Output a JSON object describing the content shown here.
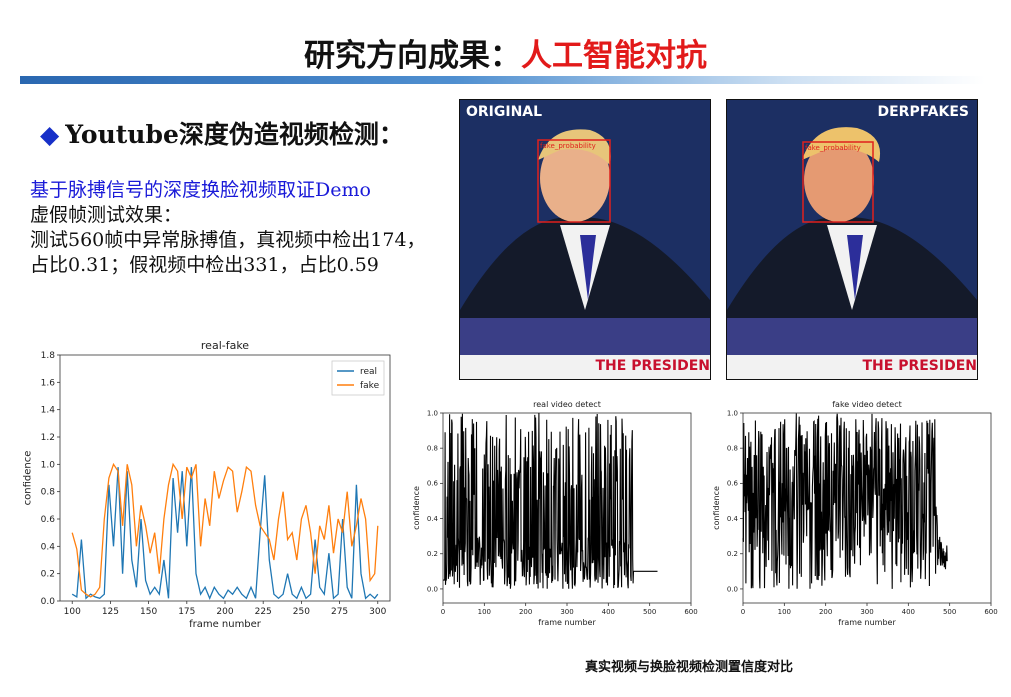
{
  "slide": {
    "title_prefix": "研究方向成果：",
    "title_accent": "人工智能对抗",
    "bullet": "Youtube深度伪造视频检测：",
    "line1": "基于脉搏信号的深度换脸视频取证Demo",
    "line2": "虚假帧测试效果：",
    "line3": "测试560帧中异常脉搏值，真视频中检出174，",
    "line4": "占比0.31；假视频中检出331，占比0.59",
    "caption": "真实视频与换脸视频检测置信度对比"
  },
  "photos": [
    {
      "label": "ORIGINAL",
      "box_label": "fake_probability",
      "strip_text": "THE PRESIDEN"
    },
    {
      "label": "DERPFAKES",
      "box_label": "fake_probability",
      "strip_text": "THE PRESIDEN"
    }
  ],
  "colors": {
    "accent_red": "#e21a1a",
    "bullet_blue": "#1730c8",
    "link_blue": "#1a1ad8",
    "real": "#1f77b4",
    "fake": "#ff7f0e"
  },
  "chart_data": [
    {
      "type": "line",
      "title": "real-fake",
      "xlabel": "frame number",
      "ylabel": "confidence",
      "xlim": [
        92,
        308
      ],
      "ylim": [
        0,
        1.8
      ],
      "xticks": [
        100,
        125,
        150,
        175,
        200,
        225,
        250,
        275,
        300
      ],
      "yticks": [
        0.0,
        0.2,
        0.4,
        0.6,
        0.8,
        1.0,
        1.2,
        1.4,
        1.6,
        1.8
      ],
      "legend": "top-right",
      "series": [
        {
          "name": "real",
          "color": "#1f77b4",
          "x": [
            100,
            103,
            106,
            109,
            112,
            115,
            118,
            121,
            124,
            127,
            130,
            133,
            136,
            139,
            142,
            145,
            148,
            151,
            154,
            157,
            160,
            163,
            166,
            169,
            172,
            175,
            178,
            181,
            184,
            187,
            190,
            193,
            196,
            199,
            202,
            205,
            208,
            211,
            214,
            217,
            220,
            223,
            226,
            229,
            232,
            235,
            238,
            241,
            244,
            247,
            250,
            253,
            256,
            259,
            262,
            265,
            268,
            271,
            274,
            277,
            280,
            283,
            286,
            289,
            292,
            295,
            298,
            300
          ],
          "y": [
            0.05,
            0.03,
            0.45,
            0.02,
            0.05,
            0.03,
            0.02,
            0.05,
            0.85,
            0.4,
            0.98,
            0.2,
            0.95,
            0.3,
            0.1,
            0.6,
            0.15,
            0.05,
            0.1,
            0.05,
            0.3,
            0.02,
            0.9,
            0.5,
            0.95,
            0.4,
            0.98,
            0.2,
            0.05,
            0.1,
            0.02,
            0.1,
            0.05,
            0.02,
            0.08,
            0.05,
            0.1,
            0.05,
            0.02,
            0.1,
            0.02,
            0.5,
            0.92,
            0.3,
            0.05,
            0.02,
            0.05,
            0.2,
            0.05,
            0.02,
            0.1,
            0.02,
            0.05,
            0.45,
            0.1,
            0.05,
            0.35,
            0.02,
            0.05,
            0.6,
            0.1,
            0.02,
            0.85,
            0.2,
            0.02,
            0.05,
            0.02,
            0.05
          ]
        },
        {
          "name": "fake",
          "color": "#ff7f0e",
          "x": [
            100,
            103,
            106,
            109,
            112,
            115,
            118,
            121,
            124,
            127,
            130,
            133,
            136,
            139,
            142,
            145,
            148,
            151,
            154,
            157,
            160,
            163,
            166,
            169,
            172,
            175,
            178,
            181,
            184,
            187,
            190,
            193,
            196,
            199,
            202,
            205,
            208,
            211,
            214,
            217,
            220,
            223,
            226,
            229,
            232,
            235,
            238,
            241,
            244,
            247,
            250,
            253,
            256,
            259,
            262,
            265,
            268,
            271,
            274,
            277,
            280,
            283,
            286,
            289,
            292,
            295,
            298,
            300
          ],
          "y": [
            0.5,
            0.38,
            0.08,
            0.05,
            0.03,
            0.05,
            0.1,
            0.6,
            0.9,
            1.0,
            0.95,
            0.55,
            1.0,
            0.85,
            0.4,
            0.7,
            0.55,
            0.35,
            0.5,
            0.2,
            0.6,
            0.85,
            1.0,
            0.95,
            0.6,
            0.98,
            0.9,
            1.0,
            0.4,
            0.75,
            0.55,
            0.95,
            0.75,
            0.88,
            0.98,
            0.95,
            0.65,
            0.8,
            0.98,
            0.95,
            0.7,
            0.55,
            0.5,
            0.45,
            0.3,
            0.6,
            0.8,
            0.45,
            0.5,
            0.3,
            0.6,
            0.7,
            0.5,
            0.2,
            0.55,
            0.45,
            0.7,
            0.35,
            0.6,
            0.5,
            0.8,
            0.4,
            0.55,
            0.75,
            0.6,
            0.15,
            0.2,
            0.55
          ]
        }
      ]
    },
    {
      "type": "line",
      "title": "real video detect",
      "xlabel": "frame number",
      "ylabel": "confidence",
      "xlim": [
        0,
        600
      ],
      "ylim": [
        -0.08,
        1.0
      ],
      "xticks": [
        0,
        100,
        200,
        300,
        400,
        500,
        600
      ],
      "yticks": [
        0.0,
        0.2,
        0.4,
        0.6,
        0.8,
        1.0
      ],
      "series": [
        {
          "name": "real video",
          "color": "#000000",
          "count": 520,
          "seed": 7,
          "mode": "real"
        }
      ]
    },
    {
      "type": "line",
      "title": "fake video detect",
      "xlabel": "frame number",
      "ylabel": "confidence",
      "xlim": [
        0,
        600
      ],
      "ylim": [
        -0.08,
        1.0
      ],
      "xticks": [
        0,
        100,
        200,
        300,
        400,
        500,
        600
      ],
      "yticks": [
        0.0,
        0.2,
        0.4,
        0.6,
        0.8,
        1.0
      ],
      "series": [
        {
          "name": "fake video",
          "color": "#000000",
          "count": 495,
          "seed": 13,
          "mode": "fake"
        }
      ]
    }
  ]
}
